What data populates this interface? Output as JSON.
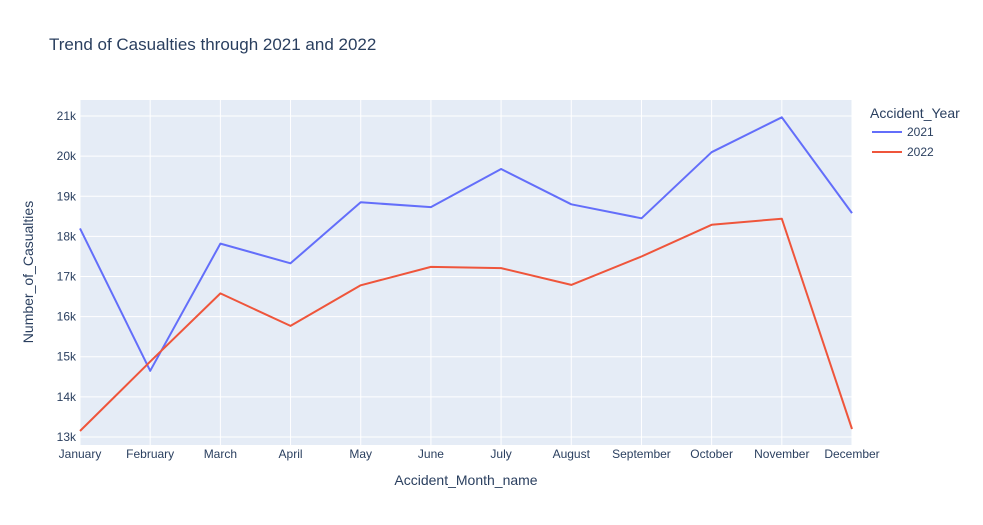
{
  "chart_data": {
    "type": "line",
    "title": "Trend of Casualties through 2021 and 2022",
    "xlabel": "Accident_Month_name",
    "ylabel": "Number_of_Casualties",
    "categories": [
      "January",
      "February",
      "March",
      "April",
      "May",
      "June",
      "July",
      "August",
      "September",
      "October",
      "November",
      "December"
    ],
    "ylim": [
      12800,
      21400
    ],
    "yticks": [
      13000,
      14000,
      15000,
      16000,
      17000,
      18000,
      19000,
      20000,
      21000
    ],
    "ytick_labels": [
      "13k",
      "14k",
      "15k",
      "16k",
      "17k",
      "18k",
      "19k",
      "20k",
      "21k"
    ],
    "grid": true,
    "legend": {
      "title": "Accident_Year",
      "placement": "right"
    },
    "plot_background": "#e5ecf6",
    "series": [
      {
        "name": "2021",
        "color": "#636efa",
        "values": [
          18200,
          14650,
          17820,
          17330,
          18850,
          18730,
          19680,
          18800,
          18450,
          20100,
          20970,
          18580
        ]
      },
      {
        "name": "2022",
        "color": "#ef553b",
        "values": [
          13150,
          14880,
          16580,
          15770,
          16780,
          17240,
          17210,
          16790,
          17500,
          18290,
          18440,
          13200
        ]
      }
    ]
  }
}
